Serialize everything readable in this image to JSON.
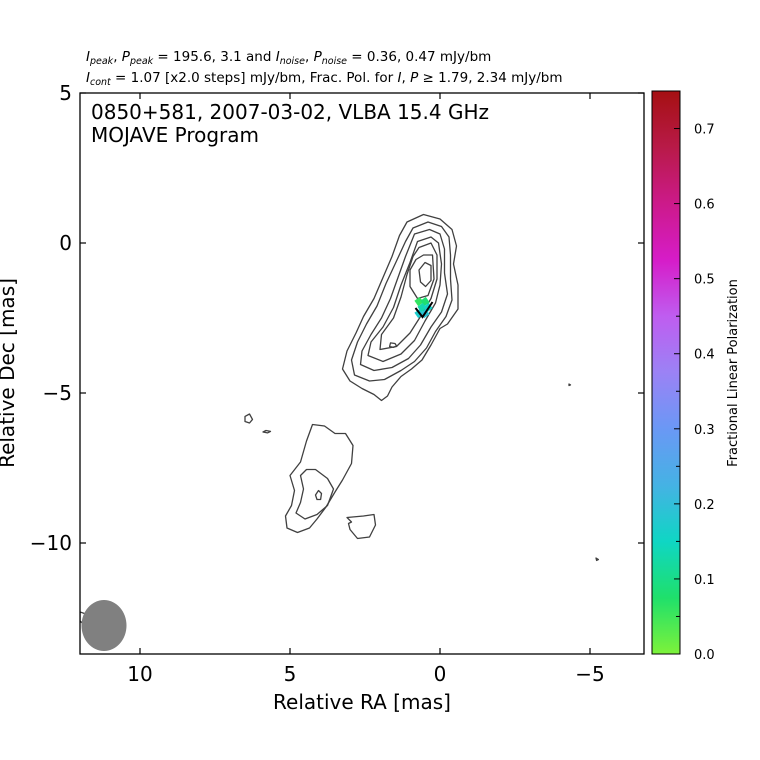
{
  "header": {
    "line1": {
      "I": "I",
      "peak": "peak",
      "P": "P",
      "noise": "noise",
      "eq1": " = 195.6, 3.1 and ",
      "eq2": " = 0.36, 0.47 mJy/bm",
      "sep": ", "
    },
    "line2": {
      "I": "I",
      "cont": "cont",
      "P": "P",
      "eq": " = 1.07 [x2.0 steps] mJy/bm, Frac. Pol. for ",
      "tail": " ≥ 1.79, 2.34 mJy/bm",
      "sep": ", "
    }
  },
  "plot": {
    "annotation_line1": "0850+581, 2007-03-02, VLBA 15.4 GHz",
    "annotation_line2": "MOJAVE Program"
  },
  "colorbar": {
    "label": "Fractional Linear Polarization",
    "range": [
      0.0,
      0.75
    ],
    "ticks": [
      0.0,
      0.1,
      0.2,
      0.3,
      0.4,
      0.5,
      0.6,
      0.7
    ],
    "tick_labels": [
      "0.0",
      "0.1",
      "0.2",
      "0.3",
      "0.4",
      "0.5",
      "0.6",
      "0.7"
    ],
    "minor_ticks": [
      0.05,
      0.15,
      0.25,
      0.35,
      0.45
    ],
    "colors": [
      "#7df23a",
      "#1fe06b",
      "#0fd6c4",
      "#45b2e4",
      "#6a98f5",
      "#9b82f5",
      "#bf5df0",
      "#d61cc8",
      "#cc1a8a",
      "#b81a48",
      "#a51012"
    ]
  },
  "chart_data": {
    "type": "contour",
    "title": "0850+581, 2007-03-02, VLBA 15.4 GHz",
    "subtitle": "MOJAVE Program",
    "xlabel": "Relative RA [mas]",
    "ylabel": "Relative Dec [mas]",
    "xlim": [
      12.0,
      -6.8
    ],
    "ylim": [
      -13.7,
      5.0
    ],
    "x_ticks": [
      10,
      5,
      0,
      -5
    ],
    "x_tick_labels": [
      "10",
      "5",
      "0",
      "−5"
    ],
    "y_ticks": [
      5,
      0,
      -5,
      -10
    ],
    "y_tick_labels": [
      "5",
      "0",
      "−5",
      "−10"
    ],
    "i_peak_mJy": 195.6,
    "p_peak_mJy": 3.1,
    "i_noise_mJy": 0.36,
    "p_noise_mJy": 0.47,
    "i_contour_base_mJy": 1.07,
    "contour_step_factor": 2.0,
    "frac_pol_threshold_mJy": [
      1.79,
      2.34
    ],
    "beam": {
      "x": 11.2,
      "y": -12.75,
      "major_mas": 0.85,
      "minor_mas": 0.75,
      "pa_deg": 0
    },
    "contours": [
      {
        "level": 1,
        "points": [
          [
            1.1,
            0.7
          ],
          [
            0.55,
            0.95
          ],
          [
            0.0,
            0.8
          ],
          [
            -0.4,
            0.45
          ],
          [
            -0.55,
            -0.1
          ],
          [
            -0.45,
            -0.7
          ],
          [
            -0.6,
            -1.4
          ],
          [
            -0.6,
            -2.2
          ],
          [
            -0.25,
            -2.7
          ],
          [
            0.0,
            -2.85
          ],
          [
            0.3,
            -3.4
          ],
          [
            0.6,
            -3.9
          ],
          [
            0.95,
            -4.2
          ],
          [
            1.3,
            -4.45
          ],
          [
            1.6,
            -4.8
          ],
          [
            1.75,
            -5.1
          ],
          [
            1.95,
            -5.25
          ],
          [
            2.2,
            -5.05
          ],
          [
            2.6,
            -4.85
          ],
          [
            3.0,
            -4.6
          ],
          [
            3.25,
            -4.2
          ],
          [
            3.1,
            -3.6
          ],
          [
            2.8,
            -3.0
          ],
          [
            2.55,
            -2.45
          ],
          [
            2.2,
            -1.85
          ],
          [
            1.9,
            -1.15
          ],
          [
            1.6,
            -0.45
          ],
          [
            1.35,
            0.25
          ]
        ]
      },
      {
        "level": 2,
        "points": [
          [
            0.9,
            0.5
          ],
          [
            0.4,
            0.7
          ],
          [
            -0.05,
            0.55
          ],
          [
            -0.3,
            0.2
          ],
          [
            -0.35,
            -0.4
          ],
          [
            -0.35,
            -1.2
          ],
          [
            -0.4,
            -1.9
          ],
          [
            -0.2,
            -2.45
          ],
          [
            0.15,
            -2.95
          ],
          [
            0.45,
            -3.5
          ],
          [
            0.85,
            -3.95
          ],
          [
            1.3,
            -4.25
          ],
          [
            1.85,
            -4.55
          ],
          [
            2.35,
            -4.6
          ],
          [
            2.85,
            -4.4
          ],
          [
            2.95,
            -3.9
          ],
          [
            2.75,
            -3.3
          ],
          [
            2.45,
            -2.7
          ],
          [
            2.1,
            -2.1
          ],
          [
            1.8,
            -1.35
          ],
          [
            1.45,
            -0.6
          ],
          [
            1.15,
            0.05
          ]
        ]
      },
      {
        "level": 3,
        "points": [
          [
            0.85,
            0.3
          ],
          [
            0.35,
            0.45
          ],
          [
            0.0,
            0.3
          ],
          [
            -0.15,
            -0.2
          ],
          [
            -0.15,
            -1.0
          ],
          [
            -0.25,
            -1.7
          ],
          [
            -0.05,
            -2.3
          ],
          [
            0.3,
            -2.8
          ],
          [
            0.65,
            -3.4
          ],
          [
            1.05,
            -3.85
          ],
          [
            1.6,
            -4.15
          ],
          [
            2.2,
            -4.25
          ],
          [
            2.65,
            -4.05
          ],
          [
            2.6,
            -3.6
          ],
          [
            2.3,
            -3.05
          ],
          [
            1.95,
            -2.5
          ],
          [
            1.65,
            -1.85
          ],
          [
            1.4,
            -1.15
          ],
          [
            1.15,
            -0.45
          ]
        ]
      },
      {
        "level": 4,
        "points": [
          [
            0.75,
            0.05
          ],
          [
            0.3,
            0.2
          ],
          [
            0.05,
            0.0
          ],
          [
            -0.05,
            -0.7
          ],
          [
            0.0,
            -1.4
          ],
          [
            0.15,
            -2.0
          ],
          [
            0.5,
            -2.6
          ],
          [
            0.85,
            -3.25
          ],
          [
            1.3,
            -3.7
          ],
          [
            1.9,
            -3.95
          ],
          [
            2.4,
            -3.75
          ],
          [
            2.3,
            -3.3
          ],
          [
            1.9,
            -2.8
          ],
          [
            1.55,
            -2.15
          ],
          [
            1.3,
            -1.4
          ],
          [
            1.0,
            -0.65
          ]
        ]
      },
      {
        "level": 5,
        "points": [
          [
            0.7,
            -0.15
          ],
          [
            0.3,
            0.0
          ],
          [
            0.1,
            -0.4
          ],
          [
            0.1,
            -1.2
          ],
          [
            0.3,
            -1.85
          ],
          [
            0.65,
            -2.45
          ],
          [
            1.0,
            -3.0
          ],
          [
            1.45,
            -3.45
          ],
          [
            2.0,
            -3.55
          ],
          [
            1.95,
            -3.05
          ],
          [
            1.55,
            -2.5
          ],
          [
            1.3,
            -1.8
          ],
          [
            1.1,
            -1.05
          ],
          [
            0.9,
            -0.45
          ]
        ]
      },
      {
        "level": 6,
        "points": [
          [
            0.55,
            -0.4
          ],
          [
            0.25,
            -0.4
          ],
          [
            0.2,
            -1.2
          ],
          [
            0.4,
            -1.75
          ],
          [
            0.75,
            -1.85
          ],
          [
            1.0,
            -1.45
          ],
          [
            1.0,
            -0.9
          ],
          [
            0.8,
            -0.55
          ]
        ]
      },
      {
        "level": 7,
        "points": [
          [
            0.5,
            -0.65
          ],
          [
            0.3,
            -0.75
          ],
          [
            0.3,
            -1.25
          ],
          [
            0.48,
            -1.45
          ],
          [
            0.65,
            -1.3
          ],
          [
            0.7,
            -0.9
          ]
        ]
      },
      {
        "level": 1,
        "points": [
          [
            1.5,
            -3.35
          ],
          [
            1.65,
            -3.33
          ],
          [
            1.68,
            -3.45
          ],
          [
            1.55,
            -3.48
          ],
          [
            1.45,
            -3.43
          ]
        ]
      },
      {
        "level": 1,
        "points": [
          [
            4.25,
            -6.05
          ],
          [
            3.85,
            -6.1
          ],
          [
            3.5,
            -6.35
          ],
          [
            3.15,
            -6.35
          ],
          [
            2.9,
            -6.75
          ],
          [
            2.95,
            -7.35
          ],
          [
            3.25,
            -7.9
          ],
          [
            3.5,
            -8.3
          ],
          [
            3.8,
            -8.8
          ],
          [
            4.1,
            -9.2
          ],
          [
            4.35,
            -9.5
          ],
          [
            4.75,
            -9.65
          ],
          [
            5.1,
            -9.5
          ],
          [
            5.15,
            -9.1
          ],
          [
            4.95,
            -8.75
          ],
          [
            4.85,
            -8.25
          ],
          [
            5.0,
            -7.75
          ],
          [
            4.65,
            -7.3
          ],
          [
            4.45,
            -6.6
          ]
        ]
      },
      {
        "level": 2,
        "points": [
          [
            4.15,
            -7.55
          ],
          [
            3.75,
            -7.85
          ],
          [
            3.55,
            -8.2
          ],
          [
            3.75,
            -8.75
          ],
          [
            4.1,
            -9.05
          ],
          [
            4.5,
            -9.2
          ],
          [
            4.8,
            -9.0
          ],
          [
            4.65,
            -8.65
          ],
          [
            4.55,
            -8.2
          ],
          [
            4.65,
            -7.75
          ],
          [
            4.45,
            -7.55
          ]
        ]
      },
      {
        "level": 3,
        "points": [
          [
            4.05,
            -8.25
          ],
          [
            3.95,
            -8.35
          ],
          [
            3.98,
            -8.55
          ],
          [
            4.1,
            -8.55
          ],
          [
            4.15,
            -8.4
          ]
        ]
      },
      {
        "level": 1,
        "points": [
          [
            3.1,
            -9.15
          ],
          [
            2.55,
            -9.1
          ],
          [
            2.2,
            -9.05
          ],
          [
            2.15,
            -9.4
          ],
          [
            2.35,
            -9.8
          ],
          [
            2.75,
            -9.85
          ],
          [
            3.0,
            -9.55
          ],
          [
            3.05,
            -9.35
          ],
          [
            2.95,
            -9.3
          ]
        ]
      },
      {
        "level": 1,
        "points": [
          [
            6.35,
            -5.7
          ],
          [
            6.5,
            -5.78
          ],
          [
            6.5,
            -5.95
          ],
          [
            6.35,
            -6.0
          ],
          [
            6.25,
            -5.88
          ]
        ]
      },
      {
        "level": 1,
        "points": [
          [
            5.8,
            -6.25
          ],
          [
            5.65,
            -6.28
          ],
          [
            5.75,
            -6.33
          ],
          [
            5.9,
            -6.3
          ]
        ]
      },
      {
        "level": 1,
        "points": [
          [
            12.0,
            -12.3
          ],
          [
            11.85,
            -12.35
          ],
          [
            11.8,
            -12.5
          ],
          [
            11.95,
            -12.65
          ],
          [
            12.0,
            -12.6
          ]
        ]
      },
      {
        "level": 1,
        "points": [
          [
            -4.3,
            -4.7
          ],
          [
            -4.35,
            -4.73
          ],
          [
            -4.3,
            -4.75
          ]
        ]
      },
      {
        "level": 1,
        "points": [
          [
            -5.2,
            -10.5
          ],
          [
            -5.28,
            -10.55
          ],
          [
            -5.22,
            -10.58
          ]
        ]
      }
    ],
    "polarization_patch": {
      "center": [
        0.55,
        -2.1
      ],
      "pixels": [
        {
          "x": 0.7,
          "y": -1.95,
          "fp": 0.06
        },
        {
          "x": 0.5,
          "y": -1.95,
          "fp": 0.08
        },
        {
          "x": 0.6,
          "y": -2.15,
          "fp": 0.13
        },
        {
          "x": 0.4,
          "y": -2.15,
          "fp": 0.16
        },
        {
          "x": 0.7,
          "y": -2.35,
          "fp": 0.17
        },
        {
          "x": 0.5,
          "y": -2.35,
          "fp": 0.19
        }
      ]
    }
  }
}
